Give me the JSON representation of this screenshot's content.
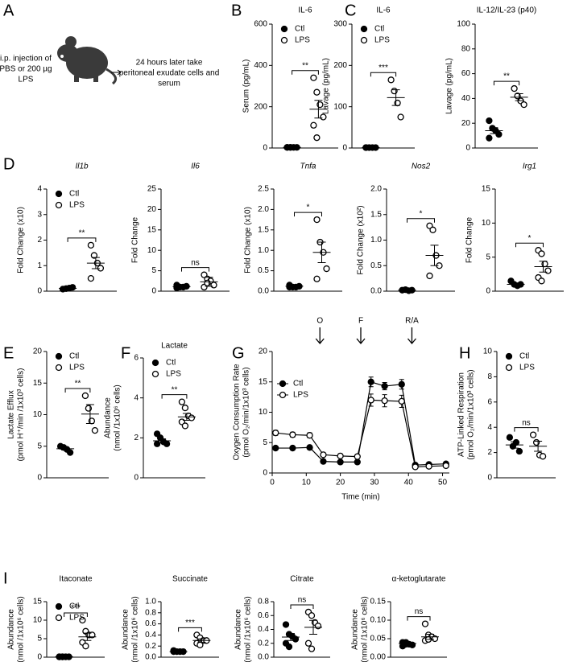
{
  "panel_labels": [
    "A",
    "B",
    "C",
    "D",
    "E",
    "F",
    "G",
    "H",
    "I"
  ],
  "schematic": {
    "injection": [
      "i.p. injection of",
      "PBS or 200 µg",
      "LPS"
    ],
    "harvest": [
      "24 hours later take",
      "peritoneal exudate cells and",
      "serum"
    ]
  },
  "chart_data": [
    {
      "type": "dot",
      "title": "IL-6",
      "ylabel": [
        "Serum (pg/mL)"
      ],
      "ylim": [
        0,
        600
      ],
      "yticks": [
        0,
        200,
        400,
        600
      ],
      "legend": true,
      "significance": "**",
      "series": [
        {
          "name": "Ctl",
          "marker": "filled",
          "color": "#000000",
          "values": [
            3,
            3,
            3,
            3,
            3,
            3
          ],
          "mean": 3,
          "sem": 0.5
        },
        {
          "name": "LPS",
          "marker": "open",
          "color": "#000000",
          "values": [
            340,
            270,
            210,
            150,
            110,
            50
          ],
          "mean": 188,
          "sem": 43
        }
      ]
    },
    {
      "type": "dot",
      "title": "IL-6",
      "ylabel": [
        "Lavage (pg/mL)"
      ],
      "ylim": [
        0,
        300
      ],
      "yticks": [
        0,
        100,
        200,
        300
      ],
      "legend": true,
      "significance": "***",
      "series": [
        {
          "name": "Ctl",
          "marker": "filled",
          "color": "#000000",
          "values": [
            1,
            1,
            1,
            1,
            1
          ],
          "mean": 1,
          "sem": 0.2
        },
        {
          "name": "LPS",
          "marker": "open",
          "color": "#000000",
          "values": [
            165,
            138,
            109,
            75
          ],
          "mean": 122,
          "sem": 19
        }
      ]
    },
    {
      "type": "dot",
      "title": "IL-12/IL-23 (p40)",
      "ylabel": [
        "Lavage (pg/mL)"
      ],
      "ylim": [
        0,
        100
      ],
      "yticks": [
        0,
        20,
        40,
        60,
        80,
        100
      ],
      "significance": "**",
      "series": [
        {
          "marker": "filled",
          "color": "#000000",
          "values": [
            22,
            16,
            14,
            11,
            8
          ],
          "mean": 14,
          "sem": 2.4
        },
        {
          "marker": "open",
          "color": "#000000",
          "values": [
            48,
            42,
            38,
            35
          ],
          "mean": 41,
          "sem": 2.8
        }
      ]
    },
    {
      "type": "dot",
      "title": "Il1b",
      "title_style": "italic",
      "ylabel": [
        "Fold Change (x10)"
      ],
      "ylim": [
        0,
        4
      ],
      "yticks": [
        0,
        1,
        2,
        3,
        4
      ],
      "legend": true,
      "significance": "**",
      "series": [
        {
          "name": "Ctl",
          "marker": "filled",
          "color": "#000000",
          "values": [
            0.08,
            0.1,
            0.12,
            0.15
          ],
          "mean": 0.11,
          "sem": 0.02
        },
        {
          "name": "LPS",
          "marker": "open",
          "color": "#000000",
          "values": [
            1.8,
            1.4,
            1.1,
            0.9,
            0.5
          ],
          "mean": 1.1,
          "sem": 0.22
        }
      ]
    },
    {
      "type": "dot",
      "title": "Il6",
      "title_style": "italic",
      "ylabel": [
        "Fold Change"
      ],
      "ylim": [
        0,
        25
      ],
      "yticks": [
        0,
        5,
        10,
        15,
        20,
        25
      ],
      "significance": "ns",
      "series": [
        {
          "marker": "filled",
          "color": "#000000",
          "values": [
            0.8,
            1,
            1,
            1.2,
            1.5
          ],
          "mean": 1.1,
          "sem": 0.15
        },
        {
          "marker": "open",
          "color": "#000000",
          "values": [
            4,
            3,
            2.5,
            1.5,
            1,
            2
          ],
          "mean": 2.3,
          "sem": 1.1
        }
      ]
    },
    {
      "type": "dot",
      "title": "Tnfa",
      "title_style": "italic",
      "ylabel": [
        "Fold Change (x10)"
      ],
      "ylim": [
        0,
        2.5
      ],
      "yticks": [
        {
          "value": 0,
          "label": "0.0"
        },
        0.5,
        {
          "value": 1,
          "label": "1.0"
        },
        1.5,
        {
          "value": 2,
          "label": "2.0"
        },
        2.5
      ],
      "significance": "*",
      "series": [
        {
          "marker": "filled",
          "color": "#000000",
          "values": [
            0.15,
            0.1,
            0.1,
            0.12,
            0.1
          ],
          "mean": 0.12,
          "sem": 0.01
        },
        {
          "marker": "open",
          "color": "#000000",
          "values": [
            1.75,
            1.2,
            0.95,
            0.55,
            0.3
          ],
          "mean": 0.95,
          "sem": 0.25
        }
      ]
    },
    {
      "type": "dot",
      "title": "Nos2",
      "title_style": "italic",
      "ylabel": [
        "Fold Change (x10²)"
      ],
      "ylim": [
        0,
        2
      ],
      "yticks": [
        {
          "value": 0,
          "label": "0.0"
        },
        0.5,
        {
          "value": 1,
          "label": "1.0"
        },
        1.5,
        {
          "value": 2,
          "label": "2.0"
        }
      ],
      "significance": "*",
      "series": [
        {
          "marker": "filled",
          "color": "#000000",
          "values": [
            0.02,
            0.03,
            0.01,
            0.02
          ],
          "mean": 0.02,
          "sem": 0.005
        },
        {
          "marker": "open",
          "color": "#000000",
          "values": [
            1.28,
            1.2,
            0.7,
            0.5,
            0.3
          ],
          "mean": 0.7,
          "sem": 0.2
        }
      ]
    },
    {
      "type": "dot",
      "title": "Irg1",
      "title_style": "italic",
      "ylabel": [
        "Fold Change"
      ],
      "ylim": [
        0,
        15
      ],
      "yticks": [
        0,
        5,
        10,
        15
      ],
      "significance": "*",
      "series": [
        {
          "marker": "filled",
          "color": "#000000",
          "values": [
            1.5,
            1,
            0.8,
            1
          ],
          "mean": 1,
          "sem": 0.15
        },
        {
          "marker": "open",
          "color": "#000000",
          "values": [
            6,
            5.5,
            4,
            3,
            2,
            1.5
          ],
          "mean": 3.6,
          "sem": 0.8
        }
      ]
    },
    {
      "type": "dot",
      "ylabel": [
        "Lactate Efflux",
        "(pmol H⁺/min /1x10³ cells)"
      ],
      "ylim": [
        0,
        20
      ],
      "yticks": [
        0,
        5,
        10,
        15,
        20
      ],
      "legend": true,
      "significance": "**",
      "series": [
        {
          "name": "Ctl",
          "marker": "filled",
          "color": "#000000",
          "values": [
            5,
            4.8,
            4.5,
            4
          ],
          "mean": 4.6,
          "sem": 0.2
        },
        {
          "name": "LPS",
          "marker": "open",
          "color": "#000000",
          "values": [
            13,
            11,
            9,
            7.5
          ],
          "mean": 10.1,
          "sem": 1.5
        }
      ]
    },
    {
      "type": "dot",
      "title": "Lactate",
      "ylabel": [
        "Abundance",
        "(nmol /1x10⁶ cells)"
      ],
      "ylim": [
        0,
        6
      ],
      "yticks": [
        0,
        2,
        4,
        6
      ],
      "legend": true,
      "significance": "**",
      "series": [
        {
          "name": "Ctl",
          "marker": "filled",
          "color": "#000000",
          "values": [
            2.2,
            2,
            1.8,
            1.7,
            1.7
          ],
          "mean": 1.85,
          "sem": 0.1
        },
        {
          "name": "LPS",
          "marker": "open",
          "color": "#000000",
          "values": [
            3.8,
            3.5,
            3.1,
            3,
            2.8,
            2.6
          ],
          "mean": 3.05,
          "sem": 0.17
        }
      ]
    },
    {
      "type": "line",
      "xlabel": "Time (min)",
      "ylabel": [
        "Oxygen Consumption Rate",
        "(pmol O₂/min/1x10³ cells)"
      ],
      "xlim": [
        0,
        52
      ],
      "xticks": [
        0,
        10,
        20,
        30,
        40,
        50
      ],
      "ylim": [
        0,
        20
      ],
      "yticks": [
        0,
        5,
        10,
        15,
        20
      ],
      "legend": true,
      "x": [
        1,
        6,
        11,
        15,
        20,
        25,
        29,
        33,
        38,
        42,
        46,
        51
      ],
      "series": [
        {
          "name": "Ctl",
          "marker": "filled",
          "color": "#000000",
          "values": [
            4.1,
            4.1,
            4.2,
            1.9,
            1.8,
            1.8,
            15,
            14.3,
            14.6,
            1.3,
            1.4,
            1.5
          ],
          "errors": [
            0.2,
            0.2,
            0.2,
            0.2,
            0.2,
            0.2,
            0.8,
            0.6,
            0.8,
            0.2,
            0.2,
            0.2
          ]
        },
        {
          "name": "LPS",
          "marker": "open",
          "color": "#000000",
          "values": [
            6.6,
            6.3,
            6.2,
            3,
            2.8,
            2.7,
            12,
            11.9,
            11.8,
            1,
            1.1,
            1.2
          ],
          "errors": [
            0.4,
            0.4,
            0.4,
            0.2,
            0.2,
            0.2,
            1,
            1,
            1,
            0.2,
            0.2,
            0.2
          ]
        }
      ],
      "annotations": [
        {
          "text": "O",
          "x": 14
        },
        {
          "text": "F",
          "x": 26
        },
        {
          "text": "R/A",
          "x": 41
        }
      ]
    },
    {
      "type": "dot",
      "ylabel": [
        "ATP-Linked Respiration",
        "(pmol O₂/min/1x10³ cells)"
      ],
      "ylim": [
        0,
        10
      ],
      "yticks": [
        0,
        2,
        4,
        6,
        8,
        10
      ],
      "legend": true,
      "significance": "ns",
      "series": [
        {
          "name": "Ctl",
          "marker": "filled",
          "color": "#000000",
          "values": [
            3.2,
            2.5,
            2.8,
            2.1
          ],
          "mean": 2.6,
          "sem": 0.25
        },
        {
          "name": "LPS",
          "marker": "open",
          "color": "#000000",
          "values": [
            3.4,
            2.8,
            1.8,
            1.7
          ],
          "mean": 2.5,
          "sem": 0.4
        }
      ]
    },
    {
      "type": "dot",
      "title": "Itaconate",
      "ylabel": [
        "Abundance",
        "(nmol /1x10⁶ cells)"
      ],
      "ylim": [
        0,
        15
      ],
      "yticks": [
        0,
        5,
        10,
        15
      ],
      "legend": true,
      "significance": "***",
      "series": [
        {
          "name": "Ctl",
          "marker": "filled",
          "color": "#000000",
          "values": [
            0.1,
            0.1,
            0.1,
            0.1,
            0.1,
            0.1
          ],
          "mean": 0.1,
          "sem": 0.02
        },
        {
          "name": "LPS",
          "marker": "open",
          "color": "#000000",
          "values": [
            10,
            7,
            6,
            6,
            4,
            3
          ],
          "mean": 5.5,
          "sem": 1
        }
      ]
    },
    {
      "type": "dot",
      "title": "Succinate",
      "ylabel": [
        "Abundance",
        "(nmol /1x10⁶ cells)"
      ],
      "ylim": [
        0,
        1
      ],
      "yticks": [
        {
          "value": 0,
          "label": "0.0"
        },
        0.2,
        0.4,
        0.6,
        0.8,
        {
          "value": 1,
          "label": "1.0"
        }
      ],
      "significance": "***",
      "series": [
        {
          "marker": "filled",
          "color": "#000000",
          "values": [
            0.12,
            0.1,
            0.1,
            0.1,
            0.1
          ],
          "mean": 0.1,
          "sem": 0.005
        },
        {
          "marker": "open",
          "color": "#000000",
          "values": [
            0.4,
            0.35,
            0.3,
            0.3,
            0.25,
            0.22
          ],
          "mean": 0.3,
          "sem": 0.03
        }
      ]
    },
    {
      "type": "dot",
      "title": "Citrate",
      "ylabel": [
        "Abundance",
        "(nmol /1x10⁶ cells)"
      ],
      "ylim": [
        0,
        0.8
      ],
      "yticks": [
        {
          "value": 0,
          "label": "0.0"
        },
        0.2,
        0.4,
        0.6,
        0.8
      ],
      "significance": "ns",
      "series": [
        {
          "marker": "filled",
          "color": "#000000",
          "values": [
            0.47,
            0.33,
            0.3,
            0.26,
            0.2,
            0.15
          ],
          "mean": 0.29,
          "sem": 0.05
        },
        {
          "marker": "open",
          "color": "#000000",
          "values": [
            0.65,
            0.6,
            0.5,
            0.45,
            0.2,
            0.12
          ],
          "mean": 0.43,
          "sem": 0.1
        }
      ]
    },
    {
      "type": "dot",
      "title": "α-ketoglutarate",
      "ylabel": [
        "Abundance",
        "(nmol /1x10⁶ cells)"
      ],
      "ylim": [
        0,
        0.15
      ],
      "yticks": [
        {
          "value": 0,
          "label": "0.00"
        },
        0.05,
        {
          "value": 0.1,
          "label": "0.10"
        },
        0.15
      ],
      "significance": "ns",
      "series": [
        {
          "marker": "filled",
          "color": "#000000",
          "values": [
            0.04,
            0.035,
            0.035,
            0.033,
            0.03,
            0.04
          ],
          "mean": 0.037,
          "sem": 0.002
        },
        {
          "marker": "open",
          "color": "#000000",
          "values": [
            0.09,
            0.06,
            0.055,
            0.05,
            0.045,
            0.048
          ],
          "mean": 0.055,
          "sem": 0.007
        }
      ]
    }
  ]
}
